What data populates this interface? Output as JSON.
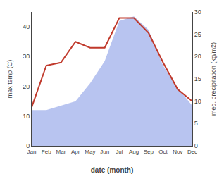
{
  "chart_data": {
    "type": "line",
    "categories": [
      "Jan",
      "Feb",
      "Mar",
      "Apr",
      "May",
      "Jun",
      "Jul",
      "Aug",
      "Sep",
      "Oct",
      "Nov",
      "Dec"
    ],
    "xlabel": "date (month)",
    "ylabel": "max temp (C)",
    "y2label": "med. precipitation (kg/m2)",
    "series": [
      {
        "type": "area",
        "color": "#b8c4f0",
        "axis": "y2",
        "values": [
          8,
          8,
          9,
          10,
          14,
          19,
          28,
          29,
          26,
          18,
          13,
          9
        ]
      },
      {
        "type": "line",
        "color": "#c0392b",
        "values": [
          13,
          27,
          28,
          35,
          33,
          33,
          43,
          43,
          38,
          28,
          19,
          15
        ]
      }
    ],
    "ylim": [
      0,
      45
    ],
    "yticks": [
      0,
      10,
      20,
      30,
      40
    ],
    "y2lim": [
      0,
      30
    ],
    "y2ticks": [
      0,
      5,
      10,
      15,
      20,
      25,
      30
    ],
    "grid": false
  }
}
